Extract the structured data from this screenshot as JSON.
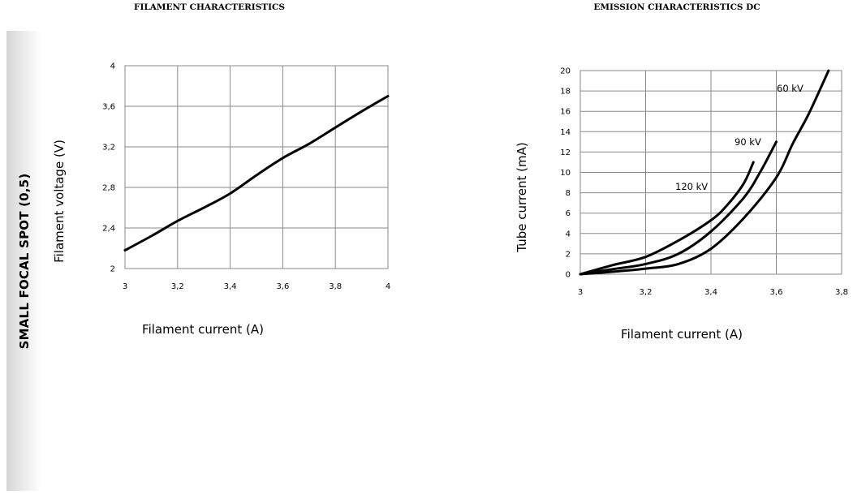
{
  "side_label": "SMALL FOCAL SPOT (0,5)",
  "chart_data": [
    {
      "type": "line",
      "title": "FILAMENT CHARACTERISTICS",
      "xlabel": "Filament current (A)",
      "ylabel": "Filament voltage (V)",
      "xlim": [
        3,
        4
      ],
      "ylim": [
        2,
        4
      ],
      "x_ticks": [
        "3",
        "3,2",
        "3,4",
        "3,6",
        "3,8",
        "4"
      ],
      "y_ticks": [
        "2",
        "2,4",
        "2,8",
        "3,2",
        "3,6",
        "4"
      ],
      "grid": true,
      "series": [
        {
          "x": [
            3.0,
            3.1,
            3.2,
            3.3,
            3.4,
            3.5,
            3.6,
            3.7,
            3.8,
            3.9,
            4.0
          ],
          "y": [
            2.18,
            2.32,
            2.47,
            2.6,
            2.74,
            2.92,
            3.09,
            3.23,
            3.39,
            3.55,
            3.7
          ]
        }
      ]
    },
    {
      "type": "line",
      "title": "EMISSION CHARACTERISTICS DC",
      "xlabel": "Filament current (A)",
      "ylabel": "Tube current (mA)",
      "xlim": [
        3,
        3.8
      ],
      "ylim": [
        0,
        20
      ],
      "x_ticks": [
        "3",
        "3,2",
        "3,4",
        "3,6",
        "3,8"
      ],
      "y_ticks": [
        "0",
        "2",
        "4",
        "6",
        "8",
        "10",
        "12",
        "14",
        "16",
        "18",
        "20"
      ],
      "grid": true,
      "series": [
        {
          "name": "120 kV",
          "x": [
            3.0,
            3.1,
            3.2,
            3.3,
            3.4,
            3.45,
            3.5,
            3.53
          ],
          "y": [
            0,
            0.9,
            1.7,
            3.3,
            5.3,
            6.8,
            8.9,
            11.0
          ]
        },
        {
          "name": "90 kV",
          "x": [
            3.0,
            3.1,
            3.2,
            3.3,
            3.4,
            3.5,
            3.55,
            3.6
          ],
          "y": [
            0,
            0.5,
            1.0,
            2.0,
            4.2,
            7.5,
            10.0,
            13.0
          ]
        },
        {
          "name": "60 kV",
          "x": [
            3.0,
            3.1,
            3.2,
            3.3,
            3.4,
            3.5,
            3.6,
            3.65,
            3.7,
            3.76
          ],
          "y": [
            0,
            0.25,
            0.55,
            1.0,
            2.5,
            5.5,
            9.5,
            12.8,
            15.8,
            20.0
          ]
        }
      ]
    }
  ]
}
